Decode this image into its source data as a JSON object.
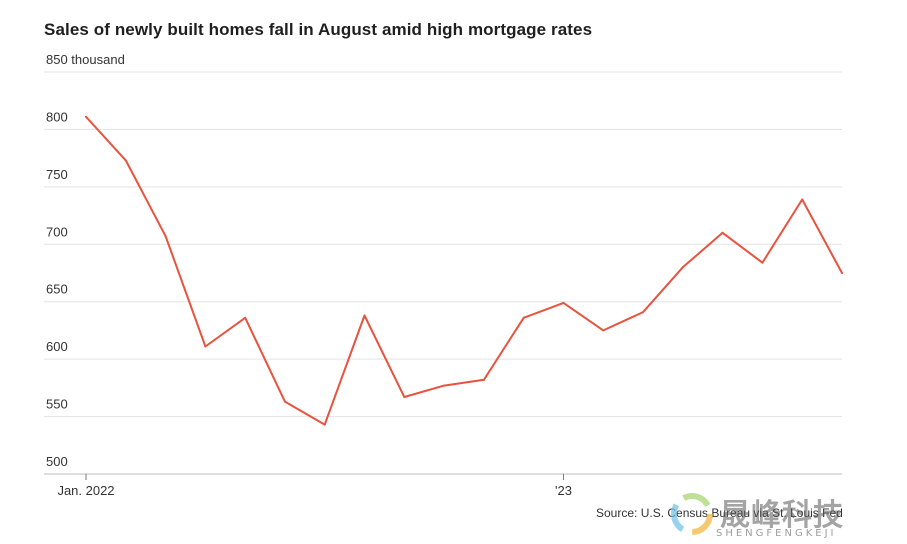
{
  "chart_data": {
    "type": "line",
    "title": "Sales of newly built homes fall in August amid high mortgage rates",
    "ylabel": "",
    "xlabel": "",
    "ylim": [
      500,
      850
    ],
    "y_ticks": [
      {
        "value": 850,
        "label": "850 thousand"
      },
      {
        "value": 800,
        "label": "800"
      },
      {
        "value": 750,
        "label": "750"
      },
      {
        "value": 700,
        "label": "700"
      },
      {
        "value": 650,
        "label": "650"
      },
      {
        "value": 600,
        "label": "600"
      },
      {
        "value": 550,
        "label": "550"
      },
      {
        "value": 500,
        "label": "500"
      }
    ],
    "x_ticks": [
      {
        "index": 0,
        "label": "Jan. 2022"
      },
      {
        "index": 12,
        "label": "'23"
      }
    ],
    "x": [
      "2022-01",
      "2022-02",
      "2022-03",
      "2022-04",
      "2022-05",
      "2022-06",
      "2022-07",
      "2022-08",
      "2022-09",
      "2022-10",
      "2022-11",
      "2022-12",
      "2023-01",
      "2023-02",
      "2023-03",
      "2023-04",
      "2023-05",
      "2023-06",
      "2023-07",
      "2023-08"
    ],
    "series": [
      {
        "color": "#e8533f",
        "values": [
          811,
          773,
          707,
          611,
          636,
          563,
          543,
          638,
          567,
          577,
          582,
          636,
          649,
          625,
          641,
          680,
          710,
          684,
          739,
          675
        ]
      }
    ],
    "grid": true,
    "legend": "none"
  },
  "source": "Source: U.S. Census Bureau via St. Louis Fed",
  "watermark": {
    "text": "晟峰科技",
    "sub": "SHENGFENGKEJI"
  }
}
